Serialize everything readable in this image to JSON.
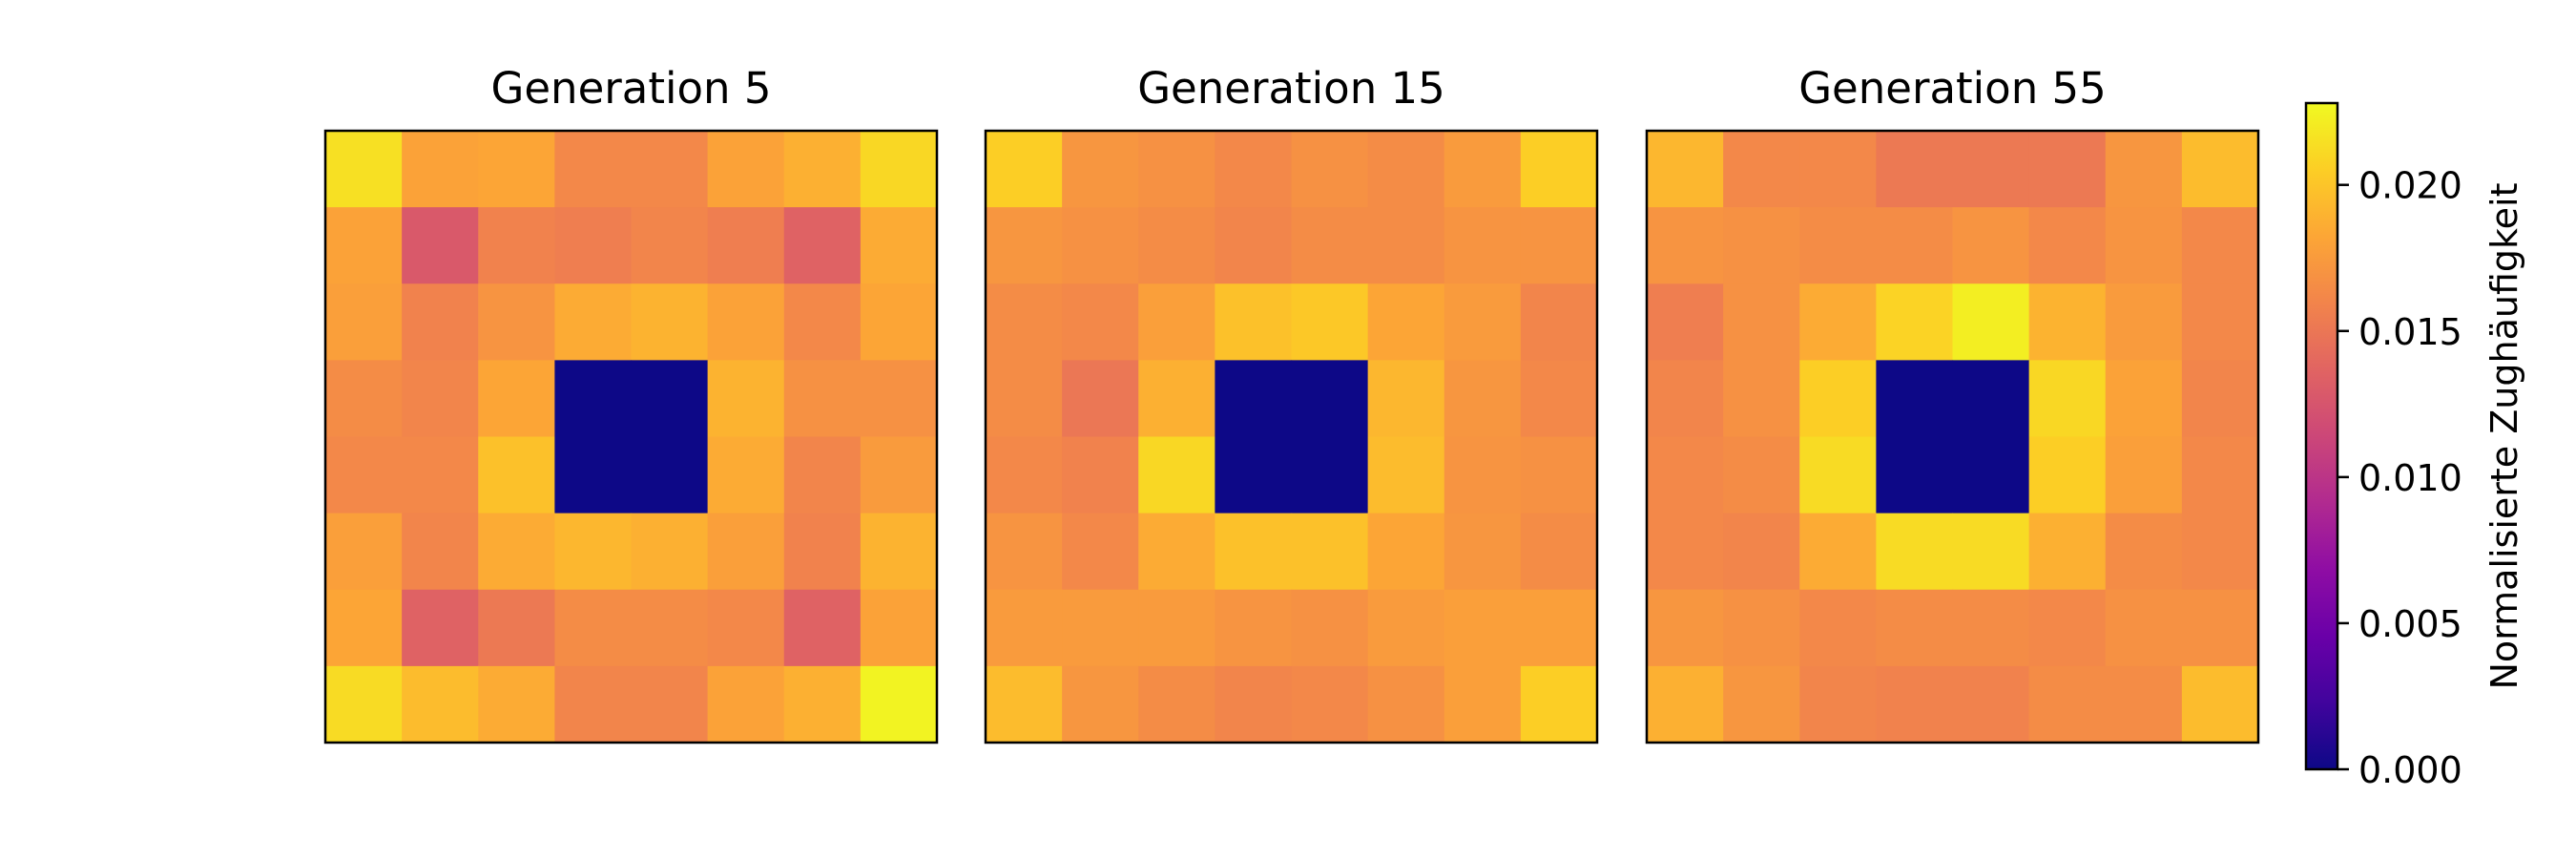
{
  "chart_data": {
    "type": "heatmap",
    "grid": "off",
    "colormap": "plasma",
    "vmin": 0.0,
    "vmax": 0.0228,
    "panels": [
      {
        "title": "Generation 5",
        "values": [
          [
            0.0215,
            0.018,
            0.0182,
            0.0162,
            0.0162,
            0.018,
            0.0188,
            0.021
          ],
          [
            0.018,
            0.0128,
            0.0158,
            0.0155,
            0.016,
            0.0155,
            0.0135,
            0.0185
          ],
          [
            0.0178,
            0.0158,
            0.017,
            0.0185,
            0.019,
            0.018,
            0.0162,
            0.0182
          ],
          [
            0.0165,
            0.016,
            0.0182,
            0.0,
            0.0,
            0.019,
            0.0168,
            0.0168
          ],
          [
            0.0162,
            0.0162,
            0.0198,
            0.0,
            0.0,
            0.0185,
            0.016,
            0.0175
          ],
          [
            0.0178,
            0.016,
            0.0185,
            0.0192,
            0.0188,
            0.0178,
            0.0158,
            0.019
          ],
          [
            0.0182,
            0.0135,
            0.0152,
            0.0165,
            0.0165,
            0.0162,
            0.0135,
            0.018
          ],
          [
            0.0212,
            0.0195,
            0.0185,
            0.016,
            0.016,
            0.018,
            0.0188,
            0.0225
          ]
        ]
      },
      {
        "title": "Generation 15",
        "values": [
          [
            0.0205,
            0.0172,
            0.0168,
            0.0162,
            0.0168,
            0.0165,
            0.0175,
            0.0205
          ],
          [
            0.0172,
            0.0168,
            0.0165,
            0.016,
            0.0165,
            0.0165,
            0.017,
            0.017
          ],
          [
            0.0165,
            0.0162,
            0.0178,
            0.0198,
            0.0202,
            0.0182,
            0.0175,
            0.016
          ],
          [
            0.0165,
            0.015,
            0.0188,
            0.0,
            0.0,
            0.0192,
            0.0172,
            0.0162
          ],
          [
            0.0162,
            0.0158,
            0.021,
            0.0,
            0.0,
            0.0195,
            0.017,
            0.0168
          ],
          [
            0.017,
            0.0162,
            0.0185,
            0.0198,
            0.0198,
            0.0182,
            0.0172,
            0.0165
          ],
          [
            0.0175,
            0.0175,
            0.0175,
            0.017,
            0.0168,
            0.0175,
            0.0178,
            0.0178
          ],
          [
            0.0195,
            0.0172,
            0.0165,
            0.016,
            0.0162,
            0.0168,
            0.0178,
            0.0205
          ]
        ]
      },
      {
        "title": "Generation 55",
        "values": [
          [
            0.0192,
            0.0162,
            0.0162,
            0.0152,
            0.0152,
            0.0152,
            0.0172,
            0.0195
          ],
          [
            0.017,
            0.0168,
            0.0165,
            0.0165,
            0.017,
            0.0162,
            0.017,
            0.0162
          ],
          [
            0.0155,
            0.0168,
            0.0185,
            0.0208,
            0.0222,
            0.019,
            0.0175,
            0.0162
          ],
          [
            0.016,
            0.0168,
            0.0205,
            0.0,
            0.0,
            0.021,
            0.018,
            0.016
          ],
          [
            0.0162,
            0.0165,
            0.0212,
            0.0,
            0.0,
            0.0205,
            0.0178,
            0.0162
          ],
          [
            0.0162,
            0.016,
            0.0185,
            0.0212,
            0.0212,
            0.0188,
            0.0165,
            0.0162
          ],
          [
            0.0172,
            0.0168,
            0.0162,
            0.0165,
            0.0165,
            0.0162,
            0.0168,
            0.0168
          ],
          [
            0.0188,
            0.0172,
            0.016,
            0.0158,
            0.0158,
            0.0165,
            0.0165,
            0.0195
          ]
        ]
      }
    ],
    "colorbar": {
      "label": "Normalisierte Zughäufigkeit",
      "ticks": [
        0.0,
        0.005,
        0.01,
        0.015,
        0.02
      ],
      "tick_labels": [
        "0.000",
        "0.005",
        "0.010",
        "0.015",
        "0.020"
      ]
    }
  }
}
